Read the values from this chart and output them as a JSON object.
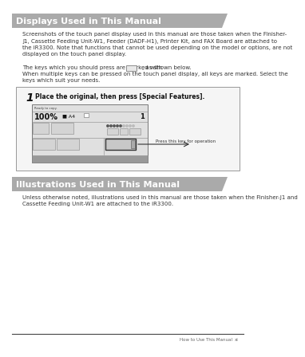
{
  "page_bg": "#ffffff",
  "header1_text": "Displays Used in This Manual",
  "header2_text": "Illustrations Used in This Manual",
  "header_bg": "#aaaaaa",
  "header_text_color": "#ffffff",
  "body1_para1": "Screenshots of the touch panel display used in this manual are those taken when the Finisher-\nJ1, Cassette Feeding Unit-W1, Feeder (DADF-H1), Printer Kit, and FAX Board are attached to\nthe iR3300. Note that functions that cannot be used depending on the model or options, are not\ndisplayed on the touch panel display.",
  "body1_para2a": "The keys which you should press are marked with",
  "body1_para2b": ", as shown below.",
  "body1_para3": "When multiple keys can be pressed on the touch panel display, all keys are marked. Select the\nkeys which suit your needs.",
  "body2_text": "Unless otherwise noted, illustrations used in this manual are those taken when the Finisher-J1 and\nCassette Feeding Unit-W1 are attached to the iR3300.",
  "step_num": "1",
  "step_text": "Place the original, then press [Special Features].",
  "arrow_label": "Press this key for operation",
  "footer_text": "How to Use This Manual",
  "footer_page": "xi",
  "text_color": "#333333",
  "body_fontsize": 5.0,
  "header_fontsize": 8.0
}
